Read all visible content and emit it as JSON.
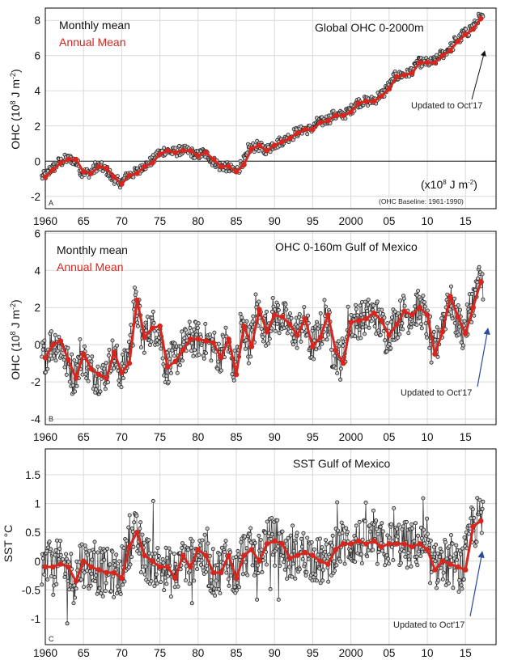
{
  "chart_data": [
    {
      "type": "line",
      "panel_letter": "A",
      "title": "Global OHC 0-2000m",
      "ylabel_main": "OHC (10",
      "ylabel_sup": "8",
      "ylabel_rest": " J m",
      "ylabel_sup2": "-2",
      "ylabel_end": ")",
      "xlim": [
        1960,
        2019
      ],
      "ylim": [
        -2.7,
        8.7
      ],
      "yticks": [
        -2,
        0,
        2,
        4,
        6,
        8
      ],
      "ytick_labels": [
        "-2",
        "0",
        "2",
        "4",
        "6",
        "8"
      ],
      "xticks": [
        1960,
        1965,
        1970,
        1975,
        1980,
        1985,
        1990,
        1995,
        2000,
        2005,
        2010,
        2015
      ],
      "xtick_labels": [
        "1960",
        "65",
        "70",
        "75",
        "80",
        "85",
        "90",
        "95",
        "2000",
        "05",
        "10",
        "15"
      ],
      "zero_line": true,
      "legend": {
        "monthly": "Monthly mean",
        "annual": "Annual Mean"
      },
      "annotation": "Updated to Oct'17",
      "unit_note": {
        "main": "(x10",
        "sup": "8",
        "mid": " J m",
        "sup2": "-2",
        "end": ")"
      },
      "baseline_note": "(OHC Baseline: 1961-1990)",
      "series": [
        {
          "name": "Annual Mean",
          "x": [
            1960,
            1961,
            1962,
            1963,
            1964,
            1965,
            1966,
            1967,
            1968,
            1969,
            1970,
            1971,
            1972,
            1973,
            1974,
            1975,
            1976,
            1977,
            1978,
            1979,
            1980,
            1981,
            1982,
            1983,
            1984,
            1985,
            1986,
            1987,
            1988,
            1989,
            1990,
            1991,
            1992,
            1993,
            1994,
            1995,
            1996,
            1997,
            1998,
            1999,
            2000,
            2001,
            2002,
            2003,
            2004,
            2005,
            2006,
            2007,
            2008,
            2009,
            2010,
            2011,
            2012,
            2013,
            2014,
            2015,
            2016,
            2017
          ],
          "y": [
            -0.9,
            -0.5,
            -0.1,
            0.1,
            0.1,
            -0.6,
            -0.7,
            -0.3,
            -0.4,
            -0.9,
            -1.3,
            -0.8,
            -0.7,
            -0.3,
            -0.1,
            0.4,
            0.6,
            0.5,
            0.6,
            0.6,
            0.3,
            0.5,
            0.1,
            -0.3,
            -0.3,
            -0.6,
            -0.2,
            0.7,
            0.9,
            0.6,
            0.9,
            1.1,
            1.3,
            1.6,
            1.8,
            1.8,
            2.2,
            2.3,
            2.6,
            2.6,
            2.8,
            3.3,
            3.4,
            3.4,
            3.7,
            4.1,
            4.8,
            4.9,
            5.0,
            5.6,
            5.6,
            5.6,
            6.0,
            6.3,
            6.8,
            7.2,
            7.5,
            8.1
          ]
        }
      ]
    },
    {
      "type": "line",
      "panel_letter": "B",
      "title": "OHC 0-160m  Gulf of Mexico",
      "ylabel_main": "OHC (10",
      "ylabel_sup": "8",
      "ylabel_rest": " J m",
      "ylabel_sup2": "-2",
      "ylabel_end": ")",
      "xlim": [
        1960,
        2019
      ],
      "ylim": [
        -4.3,
        6.1
      ],
      "yticks": [
        -4,
        -2,
        0,
        2,
        4,
        6
      ],
      "ytick_labels": [
        "-4",
        "-2",
        "0",
        "2",
        "4",
        "6"
      ],
      "xticks": [
        1960,
        1965,
        1970,
        1975,
        1980,
        1985,
        1990,
        1995,
        2000,
        2005,
        2010,
        2015
      ],
      "xtick_labels": [
        "1960",
        "65",
        "70",
        "75",
        "80",
        "85",
        "90",
        "95",
        "2000",
        "05",
        "10",
        "15"
      ],
      "zero_line": false,
      "legend": {
        "monthly": "Monthly mean",
        "annual": "Annual Mean"
      },
      "annotation": "Updated to Oct'17",
      "series": [
        {
          "name": "Annual Mean",
          "x": [
            1960,
            1961,
            1962,
            1963,
            1964,
            1965,
            1966,
            1967,
            1968,
            1969,
            1970,
            1971,
            1972,
            1973,
            1974,
            1975,
            1976,
            1977,
            1978,
            1979,
            1980,
            1981,
            1982,
            1983,
            1984,
            1985,
            1986,
            1987,
            1988,
            1989,
            1990,
            1991,
            1992,
            1993,
            1994,
            1995,
            1996,
            1997,
            1998,
            1999,
            2000,
            2001,
            2002,
            2003,
            2004,
            2005,
            2006,
            2007,
            2008,
            2009,
            2010,
            2011,
            2012,
            2013,
            2014,
            2015,
            2016,
            2017
          ],
          "y": [
            -0.7,
            0.0,
            0.2,
            -0.8,
            -1.8,
            -0.5,
            -1.3,
            -1.6,
            -1.8,
            -0.4,
            -1.5,
            -1.0,
            2.4,
            0.4,
            0.9,
            1.0,
            -1.2,
            -0.9,
            -0.3,
            0.3,
            0.3,
            0.2,
            0.1,
            -0.7,
            0.3,
            -1.6,
            1.0,
            -0.1,
            1.9,
            0.7,
            1.6,
            1.5,
            1.1,
            0.5,
            1.4,
            -0.1,
            0.4,
            1.6,
            -0.3,
            -1.0,
            1.2,
            1.3,
            1.4,
            1.7,
            1.3,
            0.5,
            1.1,
            1.8,
            1.6,
            2.0,
            1.6,
            -0.5,
            0.7,
            2.6,
            1.5,
            0.6,
            2.0,
            3.4
          ]
        }
      ]
    },
    {
      "type": "line",
      "panel_letter": "C",
      "title": "SST  Gulf of Mexico",
      "ylabel_main": "SST °C",
      "xlim": [
        1960,
        2019
      ],
      "ylim": [
        -1.45,
        1.95
      ],
      "yticks": [
        -1,
        -0.5,
        0,
        0.5,
        1,
        1.5
      ],
      "ytick_labels": [
        "-1",
        "-0.5",
        "0",
        "0.5",
        "1",
        "1.5"
      ],
      "xticks": [
        1960,
        1965,
        1970,
        1975,
        1980,
        1985,
        1990,
        1995,
        2000,
        2005,
        2010,
        2015
      ],
      "xtick_labels": [
        "1960",
        "65",
        "70",
        "75",
        "80",
        "85",
        "90",
        "95",
        "2000",
        "05",
        "10",
        "15"
      ],
      "zero_line": false,
      "annotation": "Updated to Oct'17",
      "series": [
        {
          "name": "Annual Mean",
          "x": [
            1960,
            1961,
            1962,
            1963,
            1964,
            1965,
            1966,
            1967,
            1968,
            1969,
            1970,
            1971,
            1972,
            1973,
            1974,
            1975,
            1976,
            1977,
            1978,
            1979,
            1980,
            1981,
            1982,
            1983,
            1984,
            1985,
            1986,
            1987,
            1988,
            1989,
            1990,
            1991,
            1992,
            1993,
            1994,
            1995,
            1996,
            1997,
            1998,
            1999,
            2000,
            2001,
            2002,
            2003,
            2004,
            2005,
            2006,
            2007,
            2008,
            2009,
            2010,
            2011,
            2012,
            2013,
            2014,
            2015,
            2016,
            2017
          ],
          "y": [
            -0.1,
            -0.1,
            -0.05,
            -0.1,
            -0.35,
            0.0,
            -0.1,
            -0.15,
            -0.2,
            -0.2,
            -0.3,
            0.25,
            0.5,
            0.1,
            0.0,
            -0.1,
            -0.1,
            -0.3,
            0.1,
            -0.1,
            0.2,
            0.1,
            -0.2,
            -0.2,
            0.1,
            -0.3,
            0.1,
            0.2,
            0.0,
            0.3,
            0.35,
            0.3,
            0.05,
            0.1,
            0.15,
            0.1,
            0.0,
            -0.05,
            0.2,
            0.3,
            0.3,
            0.35,
            0.3,
            0.35,
            0.25,
            0.3,
            0.3,
            0.3,
            0.25,
            0.3,
            0.2,
            -0.15,
            0.0,
            -0.05,
            -0.1,
            -0.15,
            0.6,
            0.7
          ]
        }
      ]
    }
  ]
}
